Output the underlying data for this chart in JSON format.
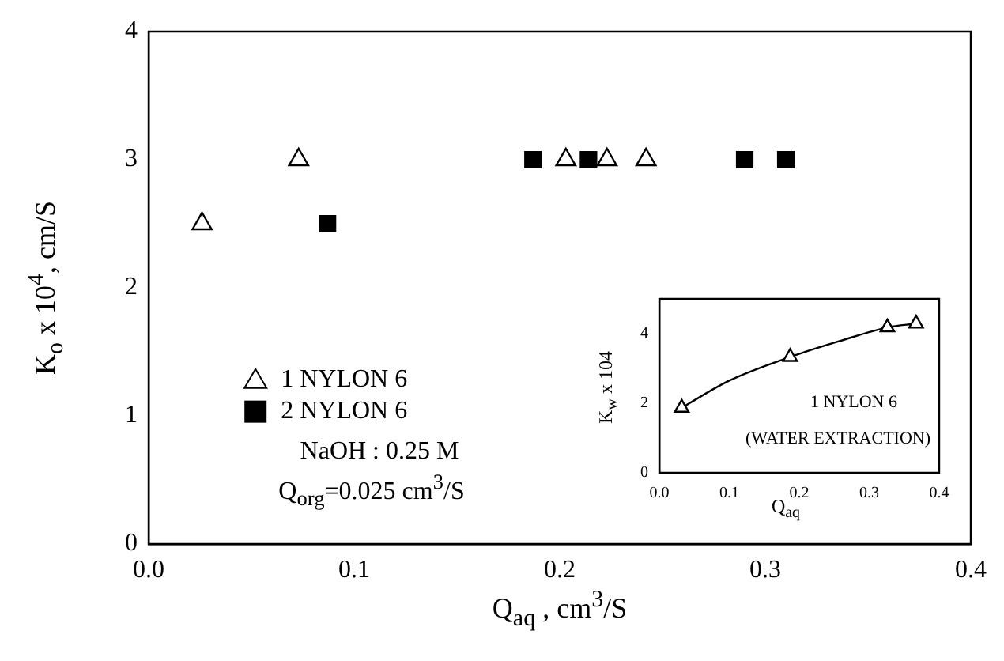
{
  "chart_data": [
    {
      "type": "scatter",
      "xlabel": "Q$_{aq}$ , cm$^{3}$/S",
      "ylabel": "K$_{o}$ x 10$^{4}$, cm/S",
      "xlim": [
        0,
        0.4
      ],
      "xticks": [
        {
          "value": 0,
          "label": "0.0"
        },
        0.1,
        0.2,
        0.3,
        0.4
      ],
      "ylim": [
        0,
        4
      ],
      "yticks": [
        0,
        1,
        2,
        3,
        4
      ],
      "grid": false,
      "legend": "bottom left",
      "series": [
        {
          "name": "1 NYLON 6",
          "color": "#000000",
          "marker": "triangle",
          "x": [
            0.026,
            0.073,
            0.203,
            0.223,
            0.242
          ],
          "values": [
            2.5,
            3,
            3,
            3,
            3
          ]
        },
        {
          "name": "2 NYLON 6",
          "color": "#000000",
          "marker": "square",
          "x": [
            0.087,
            0.187,
            0.214,
            0.29,
            0.31
          ],
          "values": [
            2.5,
            3,
            3,
            3,
            3
          ]
        }
      ],
      "annotations": [
        "NaOH : 0.25 M",
        "Q$_{org}$=0.025 cm$^{3}$/S"
      ]
    },
    {
      "type": "scatter",
      "xlabel": "Q$_{aq}$",
      "ylabel": "K$_{w}$ x 104",
      "xlim": [
        0,
        0.4
      ],
      "xticks": [
        {
          "value": 0,
          "label": "0.0"
        },
        0.1,
        0.2,
        0.3,
        0.4
      ],
      "ylim": [
        0,
        5
      ],
      "yticks": [
        0,
        2,
        4
      ],
      "grid": false,
      "series": [
        {
          "color": "#000000",
          "marker": "triangle",
          "x": [
            0.032,
            0.187,
            0.326,
            0.367
          ],
          "values": [
            1.87,
            3.33,
            4.18,
            4.29
          ]
        },
        {
          "type": "line",
          "color": "#000000",
          "marker": "none",
          "line_style": "solid",
          "x": [
            0.032,
            0.1,
            0.187,
            0.26,
            0.326,
            0.367
          ],
          "values": [
            1.87,
            2.65,
            3.33,
            3.8,
            4.18,
            4.29
          ]
        }
      ],
      "annotations": [
        "1 NYLON 6",
        "(WATER EXTRACTION)"
      ]
    }
  ]
}
